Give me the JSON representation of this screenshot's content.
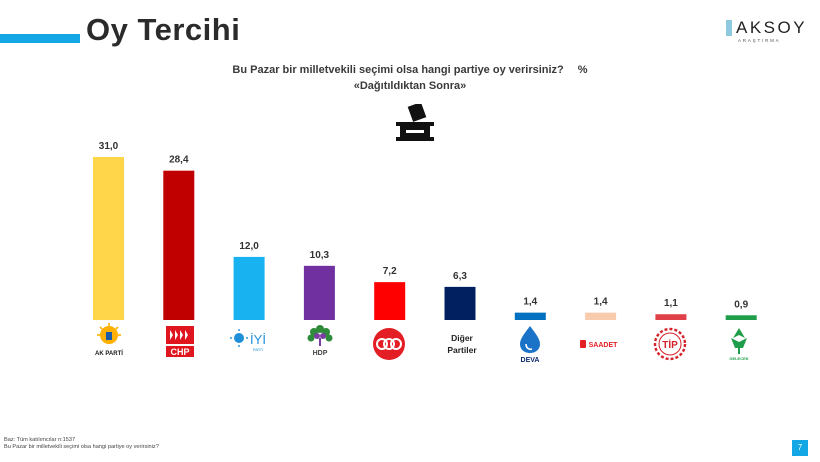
{
  "header": {
    "title": "Oy Tercihi"
  },
  "brand": {
    "name": "AKSOY",
    "sub": "ARAŞTIRMA"
  },
  "question": {
    "line1": "Bu Pazar bir milletvekili seçimi olsa hangi partiye oy verirsiniz?",
    "unit": "%",
    "line2": "«Dağıtıldıktan Sonra»"
  },
  "footer": {
    "base": "Baz: Tüm katılımcılar n:1537",
    "question": "Bu Pazar bir milletvekili seçimi olsa hangi partiye oy verirsiniz?"
  },
  "page_number": "7",
  "other_label": {
    "line1": "Diğer",
    "line2": "Partiler"
  },
  "logos": {
    "akp": "AK PARTİ",
    "chp": "CHP",
    "iyi": "İYİ",
    "iyi_sub": "PARTİ",
    "hdp": "HDP",
    "deva": "DEVA",
    "saadet": "SAADET",
    "tip": "TİP",
    "gelecek": "GELECEK"
  },
  "chart_data": {
    "type": "bar",
    "categories": [
      "AK PARTİ",
      "CHP",
      "İYİ",
      "HDP",
      "MHP",
      "Diğer Partiler",
      "DEVA",
      "SAADET",
      "TİP",
      "GELECEK"
    ],
    "values": [
      31.0,
      28.4,
      12.0,
      10.3,
      7.2,
      6.3,
      1.4,
      1.4,
      1.1,
      0.9
    ],
    "labels": [
      "31,0",
      "28,4",
      "12,0",
      "10,3",
      "7,2",
      "6,3",
      "1,4",
      "1,4",
      "1,1",
      "0,9"
    ],
    "colors": [
      "#ffd54a",
      "#c00000",
      "#19b2f0",
      "#7030a0",
      "#ff0000",
      "#002060",
      "#0070c0",
      "#f8cbad",
      "#e04048",
      "#1e9e4a"
    ],
    "ylim": [
      0,
      31
    ],
    "grid": false
  }
}
